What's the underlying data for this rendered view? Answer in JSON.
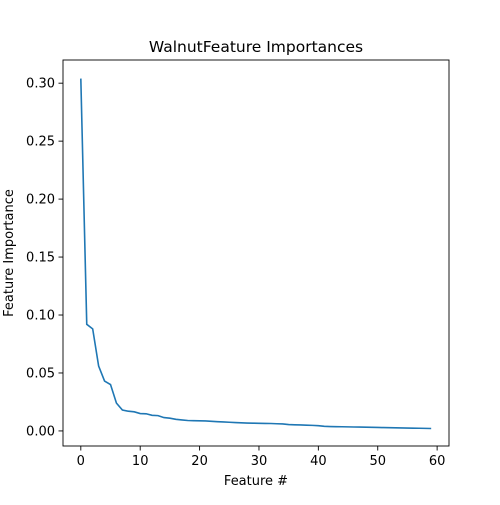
{
  "chart_data": {
    "type": "line",
    "title": "WalnutFeature Importances",
    "xlabel": "Feature #",
    "ylabel": "Feature Importance",
    "xlim": [
      -3,
      62
    ],
    "ylim": [
      -0.013,
      0.32
    ],
    "xticks": [
      0,
      10,
      20,
      30,
      40,
      50,
      60
    ],
    "xtick_labels": [
      "0",
      "10",
      "20",
      "30",
      "40",
      "50",
      "60"
    ],
    "yticks": [
      0.0,
      0.05,
      0.1,
      0.15,
      0.2,
      0.25,
      0.3
    ],
    "ytick_labels": [
      "0.00",
      "0.05",
      "0.10",
      "0.15",
      "0.20",
      "0.25",
      "0.30"
    ],
    "grid": false,
    "color": "#1f77b4",
    "series": [
      {
        "x": [
          0,
          1,
          2,
          3,
          4,
          5,
          6,
          7,
          8,
          9,
          10,
          11,
          12,
          13,
          14,
          15,
          16,
          17,
          18,
          19,
          20,
          21,
          22,
          23,
          24,
          25,
          26,
          27,
          28,
          29,
          30,
          31,
          32,
          33,
          34,
          35,
          36,
          37,
          38,
          39,
          40,
          41,
          42,
          43,
          44,
          45,
          46,
          47,
          48,
          49,
          50,
          51,
          52,
          53,
          54,
          55,
          56,
          57,
          58,
          59
        ],
        "values": [
          0.304,
          0.092,
          0.088,
          0.056,
          0.043,
          0.04,
          0.024,
          0.018,
          0.017,
          0.0165,
          0.015,
          0.0148,
          0.0135,
          0.0132,
          0.0115,
          0.011,
          0.01,
          0.0095,
          0.009,
          0.0088,
          0.0087,
          0.0086,
          0.0083,
          0.008,
          0.0078,
          0.0075,
          0.0072,
          0.007,
          0.0068,
          0.0067,
          0.0066,
          0.0065,
          0.0064,
          0.0062,
          0.006,
          0.0055,
          0.0053,
          0.0052,
          0.005,
          0.0048,
          0.0045,
          0.004,
          0.0038,
          0.0037,
          0.0036,
          0.0035,
          0.0034,
          0.0033,
          0.0032,
          0.0031,
          0.003,
          0.0029,
          0.0028,
          0.0027,
          0.0026,
          0.0025,
          0.0024,
          0.0023,
          0.0022,
          0.0021
        ]
      }
    ]
  }
}
